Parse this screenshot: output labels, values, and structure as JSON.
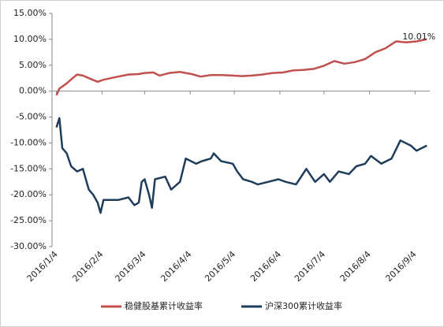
{
  "chart_data": {
    "type": "line",
    "annotation": "10.01%",
    "ylim": [
      -30,
      15
    ],
    "yticks": [
      {
        "value": 15,
        "label": "15.00%"
      },
      {
        "value": 10,
        "label": "10.00%"
      },
      {
        "value": 5,
        "label": "5.00%"
      },
      {
        "value": 0,
        "label": "0.00%"
      },
      {
        "value": -5,
        "label": "-5.00%"
      },
      {
        "value": -10,
        "label": "-10.00%"
      },
      {
        "value": -15,
        "label": "-15.00%"
      },
      {
        "value": -20,
        "label": "-20.00%"
      },
      {
        "value": -25,
        "label": "-25.00%"
      },
      {
        "value": -30,
        "label": "-30.00%"
      }
    ],
    "xlim": [
      "2016/1/1",
      "2016/9/14"
    ],
    "xticks": [
      "2016/1/4",
      "2016/2/4",
      "2016/3/4",
      "2016/4/4",
      "2016/5/4",
      "2016/6/4",
      "2016/7/4",
      "2016/8/4",
      "2016/9/4"
    ],
    "legend": "bottom",
    "series": [
      {
        "name": "稳健股基累计收益率",
        "color": "#c0504d",
        "x": [
          "2016/1/4",
          "2016/1/6",
          "2016/1/11",
          "2016/1/15",
          "2016/1/18",
          "2016/1/22",
          "2016/1/26",
          "2016/2/1",
          "2016/2/5",
          "2016/2/15",
          "2016/2/22",
          "2016/2/29",
          "2016/3/4",
          "2016/3/10",
          "2016/3/14",
          "2016/3/21",
          "2016/3/28",
          "2016/4/5",
          "2016/4/11",
          "2016/4/18",
          "2016/4/25",
          "2016/5/3",
          "2016/5/9",
          "2016/5/16",
          "2016/5/23",
          "2016/5/30",
          "2016/6/6",
          "2016/6/13",
          "2016/6/20",
          "2016/6/27",
          "2016/7/4",
          "2016/7/11",
          "2016/7/18",
          "2016/7/25",
          "2016/8/1",
          "2016/8/8",
          "2016/8/15",
          "2016/8/22",
          "2016/8/29",
          "2016/9/5",
          "2016/9/12"
        ],
        "values": [
          -0.8,
          0.5,
          1.5,
          2.5,
          3.2,
          3,
          2.5,
          1.8,
          2.2,
          2.8,
          3.2,
          3.3,
          3.5,
          3.6,
          3,
          3.5,
          3.7,
          3.3,
          2.8,
          3.1,
          3.1,
          3,
          2.9,
          3,
          3.2,
          3.5,
          3.6,
          4,
          4.1,
          4.3,
          4.9,
          5.8,
          5.3,
          5.6,
          6.2,
          7.5,
          8.3,
          9.6,
          9.4,
          9.6,
          10.01
        ]
      },
      {
        "name": "沪深300累计收益率",
        "color": "#1f3d5a",
        "x": [
          "2016/1/4",
          "2016/1/6",
          "2016/1/8",
          "2016/1/11",
          "2016/1/14",
          "2016/1/18",
          "2016/1/22",
          "2016/1/26",
          "2016/1/29",
          "2016/2/1",
          "2016/2/3",
          "2016/2/5",
          "2016/2/15",
          "2016/2/22",
          "2016/2/26",
          "2016/2/29",
          "2016/3/2",
          "2016/3/4",
          "2016/3/7",
          "2016/3/9",
          "2016/3/11",
          "2016/3/18",
          "2016/3/22",
          "2016/3/28",
          "2016/4/1",
          "2016/4/8",
          "2016/4/12",
          "2016/4/18",
          "2016/4/20",
          "2016/4/25",
          "2016/5/3",
          "2016/5/6",
          "2016/5/10",
          "2016/5/16",
          "2016/5/20",
          "2016/5/27",
          "2016/6/3",
          "2016/6/8",
          "2016/6/15",
          "2016/6/22",
          "2016/6/28",
          "2016/7/4",
          "2016/7/8",
          "2016/7/14",
          "2016/7/21",
          "2016/7/26",
          "2016/8/1",
          "2016/8/5",
          "2016/8/12",
          "2016/8/19",
          "2016/8/25",
          "2016/9/1",
          "2016/9/5",
          "2016/9/12"
        ],
        "values": [
          -7,
          -5.2,
          -11,
          -12,
          -14.5,
          -15.5,
          -15,
          -19,
          -20,
          -21.5,
          -23.5,
          -21,
          -21,
          -20.5,
          -22,
          -21.5,
          -17.5,
          -17,
          -20,
          -22.5,
          -17,
          -16.5,
          -19,
          -17.5,
          -13,
          -14,
          -13.5,
          -13,
          -12,
          -13.5,
          -14,
          -15.5,
          -17,
          -17.5,
          -18,
          -17.5,
          -17,
          -17.5,
          -18,
          -15,
          -17.5,
          -16,
          -17.5,
          -15.5,
          -16,
          -14.5,
          -14,
          -12.5,
          -14,
          -13,
          -9.5,
          -10.5,
          -11.5,
          -10.5
        ]
      }
    ]
  }
}
